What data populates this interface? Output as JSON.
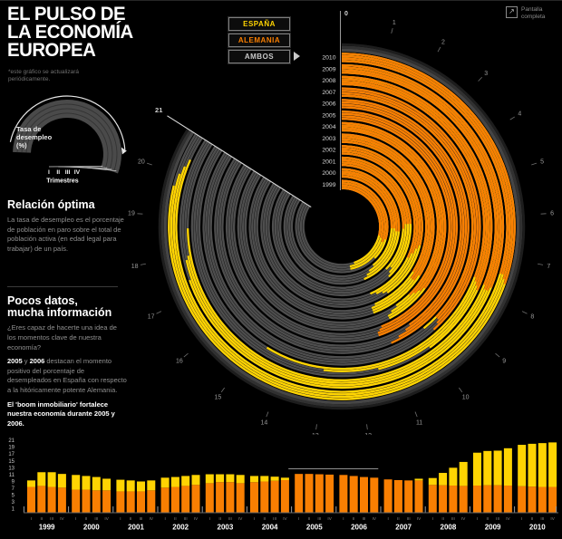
{
  "header": {
    "title_lines": [
      "EL PULSO DE",
      "LA ECONOMÍA",
      "EUROPEA"
    ],
    "subtitle": "*este gráfico se actualizará periódicamente.",
    "fullscreen_lines": [
      "Pantalla",
      "completa"
    ]
  },
  "buttons": [
    {
      "id": "espana",
      "label": "ESPAÑA",
      "color": "#FFD402"
    },
    {
      "id": "alemania",
      "label": "ALEMANIA",
      "color": "#F97F02"
    },
    {
      "id": "ambos",
      "label": "AMBOS",
      "color": "#C9C9C9",
      "selected": true
    }
  ],
  "legend": {
    "unit_lines": [
      "Tasa de",
      "desempleo",
      "(%)"
    ],
    "quarter_marks": [
      "I",
      "II",
      "III",
      "IV"
    ],
    "quarters_label": "Trimestres"
  },
  "sections": {
    "relacion": {
      "heading": "Relación óptima",
      "body": "La tasa de desempleo es el porcentaje de población en paro sobre el total de población activa (en edad legal para trabajar) de un país."
    },
    "pocos": {
      "heading_lines": [
        "Pocos datos,",
        "mucha información"
      ],
      "body1": "¿Eres capaz de hacerte una idea de los momentos clave de nuestra economía?",
      "body2": {
        "b1": "2005",
        "s1": " y ",
        "b2": "2006",
        "rest": " destacan el momento positivo del porcentaje de desempleados en España con respecto a la hitóricamente potente Alemania."
      },
      "body3": "El 'boom inmobiliario' fortalece nuestra economía durante 2005 y 2006."
    }
  },
  "chart_data": {
    "type": "radial-bar",
    "title": "El pulso de la economía europea",
    "unit": "Tasa de desempleo (%)",
    "scale_max": 21,
    "axis_start_label": "0",
    "axis_end_label": "21",
    "grid": false,
    "years": [
      1999,
      2000,
      2001,
      2002,
      2003,
      2004,
      2005,
      2006,
      2007,
      2008,
      2009,
      2010
    ],
    "quarters": [
      "I",
      "II",
      "III",
      "IV"
    ],
    "series": [
      {
        "name": "España",
        "color": "#FFD402",
        "quarterly_by_year": [
          [
            9.3,
            11.7,
            11.7,
            11.2
          ],
          [
            10.9,
            10.6,
            10.3,
            9.8
          ],
          [
            9.5,
            9.3,
            9.0,
            9.3
          ],
          [
            10.1,
            10.3,
            10.6,
            10.9
          ],
          [
            11.1,
            11.1,
            11.1,
            10.9
          ],
          [
            10.6,
            10.6,
            10.4,
            10.1
          ],
          [
            9.2,
            8.9,
            8.7,
            8.9
          ],
          [
            8.9,
            8.5,
            8.3,
            8.4
          ],
          [
            9.0,
            8.8,
            9.0,
            9.8
          ],
          [
            10.0,
            11.5,
            13.0,
            14.7
          ],
          [
            17.4,
            17.9,
            18.0,
            18.7
          ],
          [
            19.7,
            20.0,
            20.2,
            20.4
          ]
        ]
      },
      {
        "name": "Alemania",
        "color": "#F97F02",
        "quarterly_by_year": [
          [
            7.4,
            7.7,
            7.4,
            7.2
          ],
          [
            6.6,
            6.6,
            6.4,
            6.4
          ],
          [
            6.1,
            6.1,
            6.1,
            6.4
          ],
          [
            7.2,
            7.4,
            7.7,
            8.0
          ],
          [
            8.5,
            8.8,
            8.8,
            8.5
          ],
          [
            8.8,
            9.0,
            9.2,
            9.4
          ],
          [
            11.2,
            11.2,
            11.1,
            11.0
          ],
          [
            10.9,
            10.6,
            10.3,
            10.1
          ],
          [
            9.6,
            9.4,
            9.3,
            9.3
          ],
          [
            8.0,
            7.9,
            7.8,
            7.7
          ],
          [
            7.8,
            7.9,
            7.9,
            7.8
          ],
          [
            7.6,
            7.5,
            7.4,
            7.4
          ]
        ]
      }
    ],
    "track_color": "#4E4E4E",
    "bar_axis_ticks": [
      21,
      19,
      17,
      15,
      13,
      11,
      9,
      7,
      5,
      3,
      1
    ],
    "highlight": {
      "years": [
        2005,
        2006
      ]
    }
  }
}
